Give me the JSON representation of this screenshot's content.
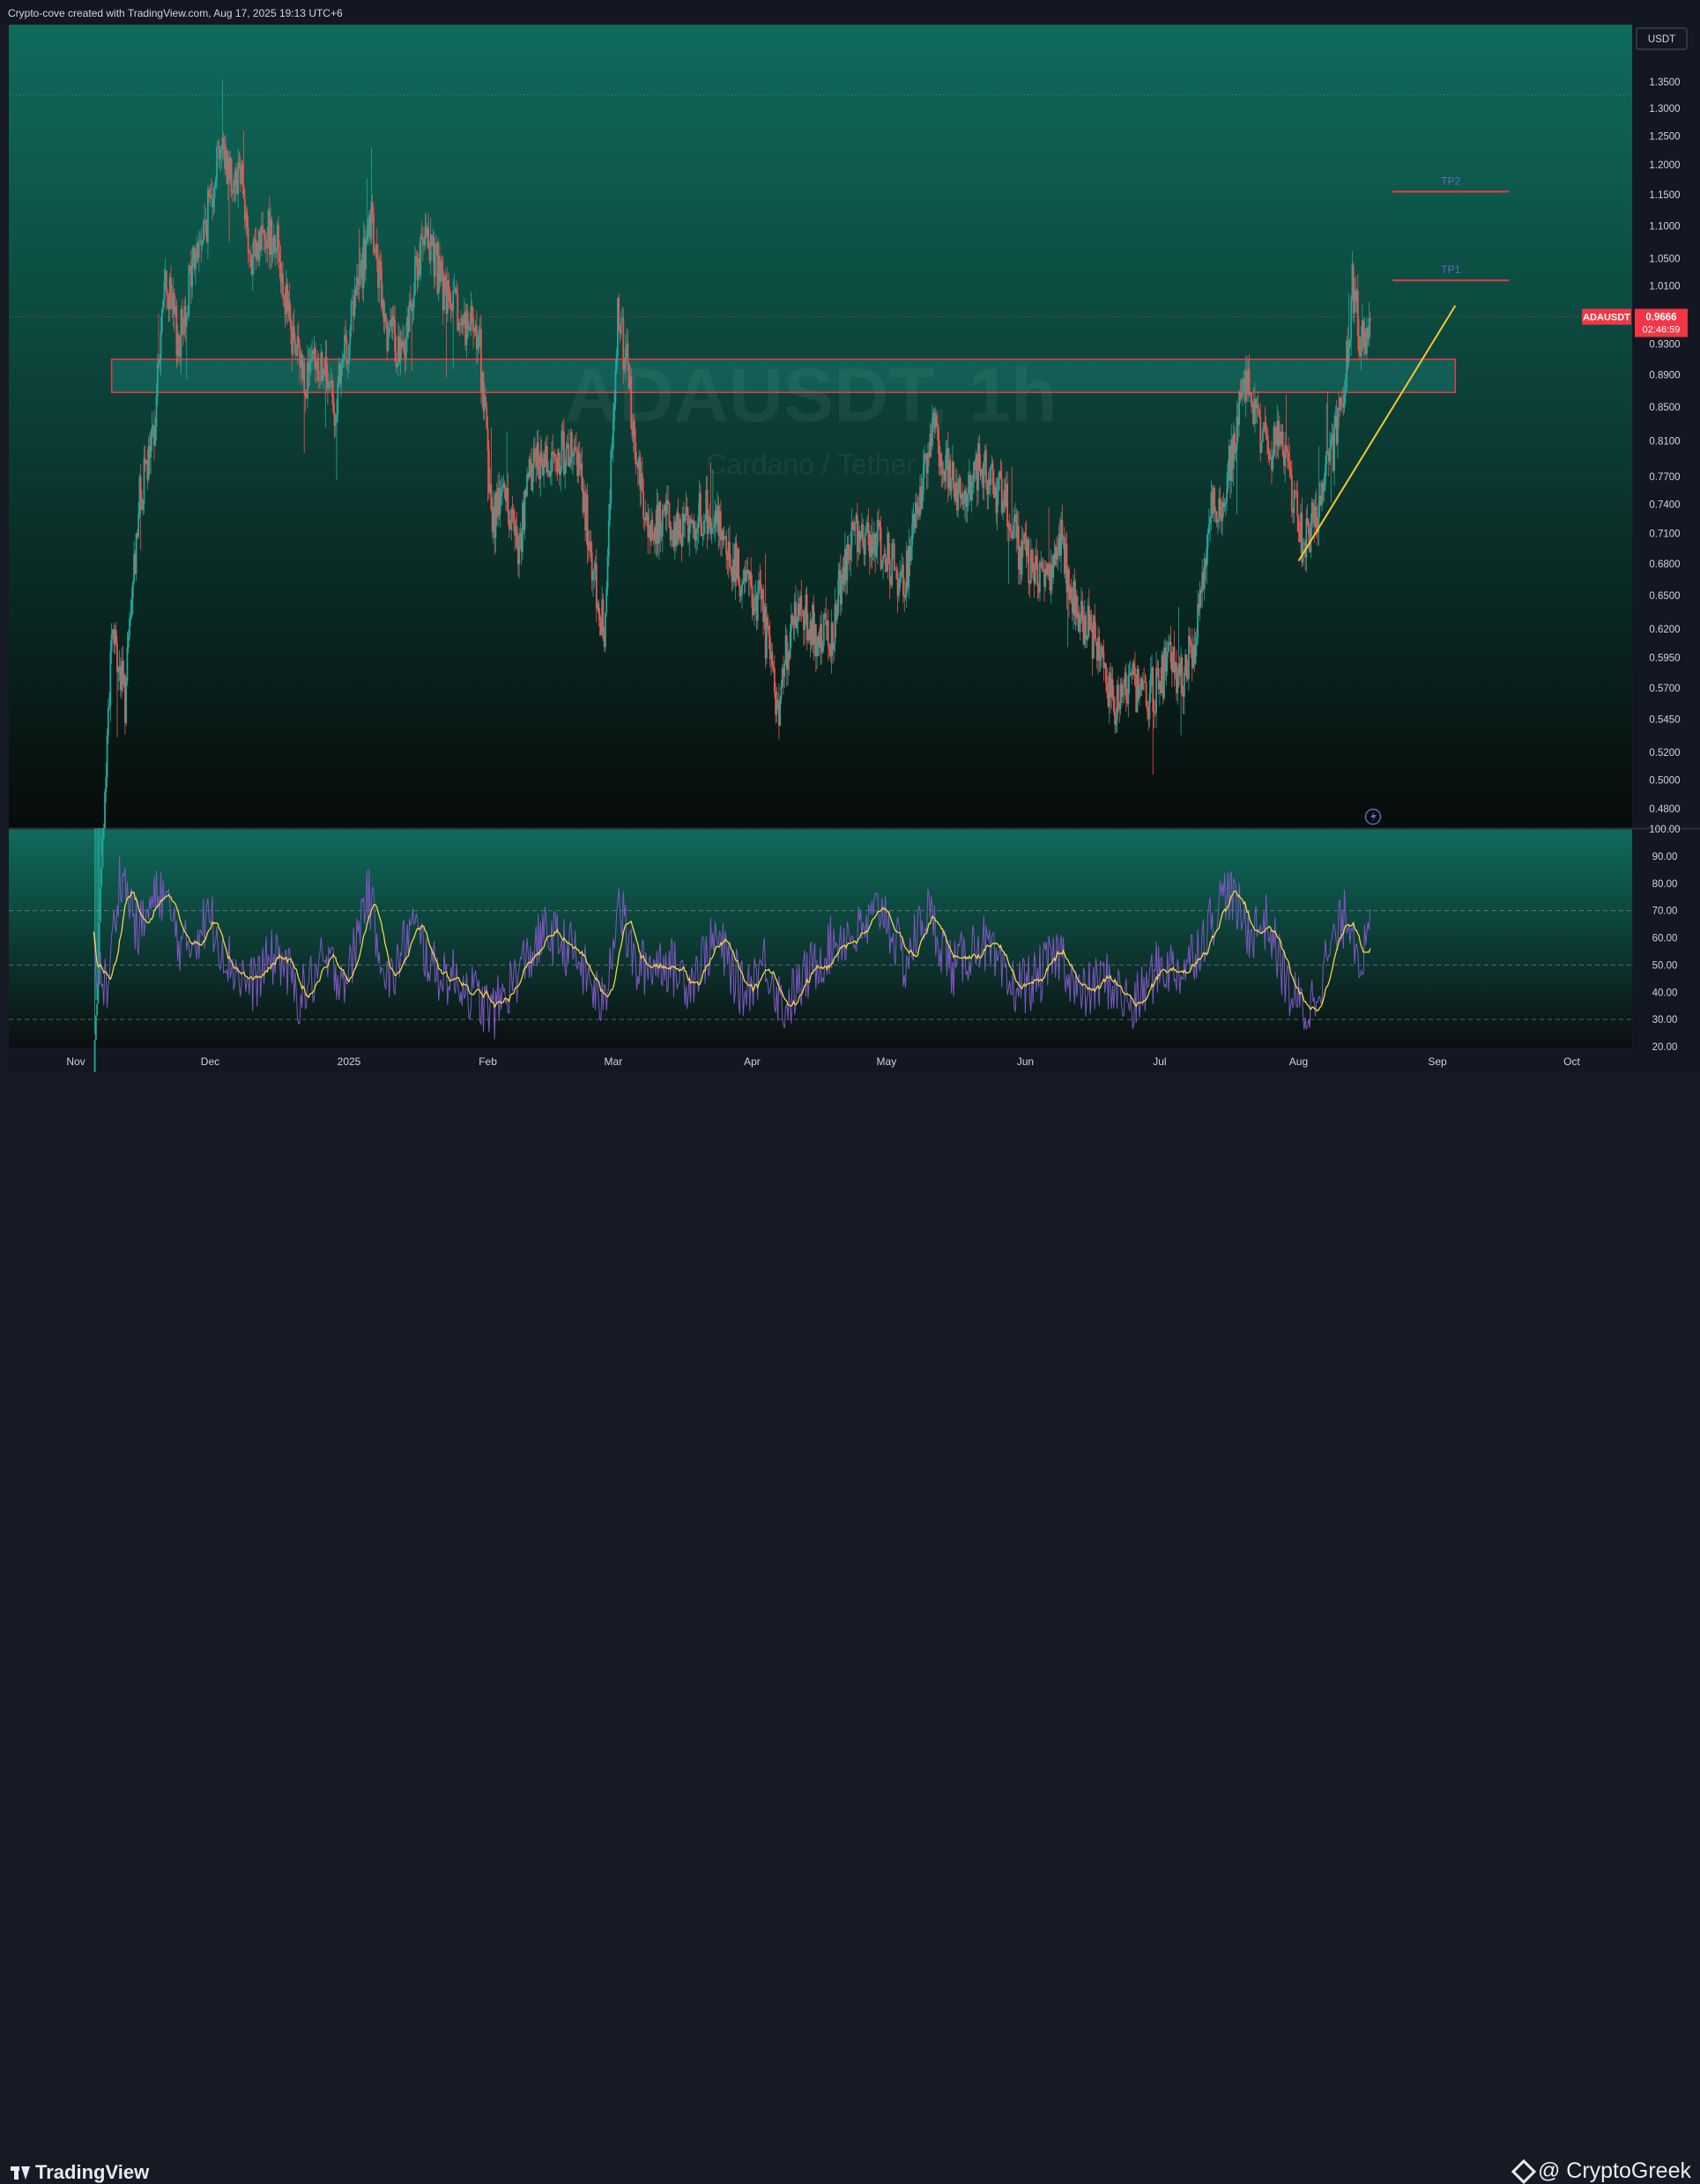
{
  "attribution": "Crypto-cove created with TradingView.com, Aug 17, 2025 19:13 UTC+6",
  "footer": {
    "logo_text": "TradingView",
    "brand_text": "@ CryptoGreek"
  },
  "colors": {
    "up": "#26a69a",
    "down": "#ef5350",
    "rsi_line": "#7e57c2",
    "rsi_ma": "#f5d34a",
    "zone_border": "#f23645",
    "trendline": "#f7c537",
    "price_tag": "#f23645"
  },
  "chart_data": {
    "type": "candlestick",
    "symbol": "ADAUSDT",
    "watermark": {
      "symbol": "ADAUSDT",
      "timeframe": "1h",
      "description": "Cardano / Tether"
    },
    "currency": "USDT",
    "last_price": "0.9666",
    "countdown": "02:46:59",
    "price_ticks": [
      "1.3500",
      "1.3000",
      "1.2500",
      "1.2000",
      "1.1500",
      "1.1000",
      "1.0500",
      "1.0100",
      "0.9300",
      "0.8900",
      "0.8500",
      "0.8100",
      "0.7700",
      "0.7400",
      "0.7100",
      "0.6800",
      "0.6500",
      "0.6200",
      "0.5950",
      "0.5700",
      "0.5450",
      "0.5200",
      "0.5000",
      "0.4800"
    ],
    "time_labels": [
      "Nov",
      "Dec",
      "2025",
      "Feb",
      "Mar",
      "Apr",
      "May",
      "Jun",
      "Jul",
      "Aug",
      "Sep",
      "Oct"
    ],
    "price_path": [
      [
        "2024-11-05",
        0.33
      ],
      [
        "2024-11-09",
        0.62
      ],
      [
        "2024-11-12",
        0.56
      ],
      [
        "2024-11-15",
        0.74
      ],
      [
        "2024-11-18",
        0.8
      ],
      [
        "2024-11-21",
        1.02
      ],
      [
        "2024-11-24",
        0.93
      ],
      [
        "2024-11-27",
        1.04
      ],
      [
        "2024-11-30",
        1.1
      ],
      [
        "2024-12-03",
        1.24
      ],
      [
        "2024-12-06",
        1.18
      ],
      [
        "2024-12-08",
        1.2
      ],
      [
        "2024-12-10",
        1.03
      ],
      [
        "2024-12-13",
        1.1
      ],
      [
        "2024-12-16",
        1.08
      ],
      [
        "2024-12-19",
        0.94
      ],
      [
        "2024-12-22",
        0.89
      ],
      [
        "2024-12-26",
        0.9
      ],
      [
        "2024-12-29",
        0.85
      ],
      [
        "2025-01-02",
        0.98
      ],
      [
        "2025-01-06",
        1.1
      ],
      [
        "2025-01-09",
        0.96
      ],
      [
        "2025-01-13",
        0.91
      ],
      [
        "2025-01-16",
        1.04
      ],
      [
        "2025-01-19",
        1.08
      ],
      [
        "2025-01-22",
        1.0
      ],
      [
        "2025-01-26",
        0.96
      ],
      [
        "2025-01-30",
        0.94
      ],
      [
        "2025-02-02",
        0.72
      ],
      [
        "2025-02-04",
        0.76
      ],
      [
        "2025-02-08",
        0.7
      ],
      [
        "2025-02-11",
        0.79
      ],
      [
        "2025-02-15",
        0.79
      ],
      [
        "2025-02-19",
        0.8
      ],
      [
        "2025-02-22",
        0.76
      ],
      [
        "2025-02-25",
        0.66
      ],
      [
        "2025-02-27",
        0.62
      ],
      [
        "2025-03-02",
        0.98
      ],
      [
        "2025-03-04",
        0.9
      ],
      [
        "2025-03-06",
        0.8
      ],
      [
        "2025-03-09",
        0.71
      ],
      [
        "2025-03-12",
        0.73
      ],
      [
        "2025-03-16",
        0.71
      ],
      [
        "2025-03-20",
        0.73
      ],
      [
        "2025-03-24",
        0.73
      ],
      [
        "2025-03-28",
        0.68
      ],
      [
        "2025-03-31",
        0.66
      ],
      [
        "2025-04-03",
        0.64
      ],
      [
        "2025-04-07",
        0.55
      ],
      [
        "2025-04-09",
        0.61
      ],
      [
        "2025-04-12",
        0.64
      ],
      [
        "2025-04-16",
        0.61
      ],
      [
        "2025-04-19",
        0.62
      ],
      [
        "2025-04-23",
        0.71
      ],
      [
        "2025-04-27",
        0.71
      ],
      [
        "2025-05-01",
        0.69
      ],
      [
        "2025-05-05",
        0.66
      ],
      [
        "2025-05-08",
        0.74
      ],
      [
        "2025-05-11",
        0.83
      ],
      [
        "2025-05-14",
        0.79
      ],
      [
        "2025-05-18",
        0.74
      ],
      [
        "2025-05-22",
        0.79
      ],
      [
        "2025-05-25",
        0.76
      ],
      [
        "2025-05-28",
        0.74
      ],
      [
        "2025-05-31",
        0.69
      ],
      [
        "2025-06-03",
        0.68
      ],
      [
        "2025-06-06",
        0.66
      ],
      [
        "2025-06-09",
        0.7
      ],
      [
        "2025-06-12",
        0.64
      ],
      [
        "2025-06-15",
        0.62
      ],
      [
        "2025-06-18",
        0.6
      ],
      [
        "2025-06-21",
        0.55
      ],
      [
        "2025-06-24",
        0.58
      ],
      [
        "2025-06-27",
        0.56
      ],
      [
        "2025-06-30",
        0.57
      ],
      [
        "2025-07-03",
        0.59
      ],
      [
        "2025-07-06",
        0.58
      ],
      [
        "2025-07-09",
        0.61
      ],
      [
        "2025-07-12",
        0.73
      ],
      [
        "2025-07-15",
        0.74
      ],
      [
        "2025-07-18",
        0.82
      ],
      [
        "2025-07-20",
        0.88
      ],
      [
        "2025-07-23",
        0.83
      ],
      [
        "2025-07-25",
        0.8
      ],
      [
        "2025-07-28",
        0.81
      ],
      [
        "2025-07-31",
        0.75
      ],
      [
        "2025-08-02",
        0.7
      ],
      [
        "2025-08-05",
        0.73
      ],
      [
        "2025-08-08",
        0.79
      ],
      [
        "2025-08-11",
        0.85
      ],
      [
        "2025-08-13",
        1.01
      ],
      [
        "2025-08-15",
        0.93
      ],
      [
        "2025-08-17",
        0.97
      ]
    ],
    "annotations": {
      "zone": {
        "from": "2024-11-09",
        "to": "2025-09-05",
        "top": 0.91,
        "bottom": 0.868
      },
      "trendline": {
        "from": [
          "2025-08-01",
          0.683
        ],
        "to": [
          "2025-09-05",
          0.982
        ]
      },
      "targets": [
        {
          "label": "TP1",
          "price": 1.018,
          "from": "2025-08-22",
          "to": "2025-09-17"
        },
        {
          "label": "TP2",
          "price": 1.155,
          "from": "2025-08-22",
          "to": "2025-09-17"
        }
      ]
    },
    "rsi": {
      "ticks": [
        "100.00",
        "90.00",
        "80.00",
        "70.00",
        "60.00",
        "50.00",
        "40.00",
        "30.00",
        "20.00"
      ],
      "levels": [
        70,
        50,
        30
      ],
      "path": [
        [
          "2024-11-05",
          55
        ],
        [
          "2024-11-08",
          40
        ],
        [
          "2024-11-11",
          85
        ],
        [
          "2024-11-15",
          62
        ],
        [
          "2024-11-20",
          78
        ],
        [
          "2024-11-25",
          55
        ],
        [
          "2024-12-01",
          68
        ],
        [
          "2024-12-05",
          52
        ],
        [
          "2024-12-10",
          42
        ],
        [
          "2024-12-16",
          55
        ],
        [
          "2024-12-21",
          38
        ],
        [
          "2024-12-26",
          50
        ],
        [
          "2025-01-01",
          46
        ],
        [
          "2025-01-05",
          78
        ],
        [
          "2025-01-10",
          42
        ],
        [
          "2025-01-15",
          65
        ],
        [
          "2025-01-20",
          48
        ],
        [
          "2025-01-26",
          44
        ],
        [
          "2025-02-02",
          32
        ],
        [
          "2025-02-08",
          48
        ],
        [
          "2025-02-14",
          62
        ],
        [
          "2025-02-20",
          55
        ],
        [
          "2025-02-27",
          34
        ],
        [
          "2025-03-02",
          75
        ],
        [
          "2025-03-06",
          48
        ],
        [
          "2025-03-12",
          52
        ],
        [
          "2025-03-18",
          44
        ],
        [
          "2025-03-24",
          60
        ],
        [
          "2025-03-30",
          40
        ],
        [
          "2025-04-04",
          52
        ],
        [
          "2025-04-08",
          34
        ],
        [
          "2025-04-14",
          48
        ],
        [
          "2025-04-20",
          60
        ],
        [
          "2025-04-26",
          62
        ],
        [
          "2025-04-30",
          72
        ],
        [
          "2025-05-05",
          50
        ],
        [
          "2025-05-10",
          70
        ],
        [
          "2025-05-16",
          48
        ],
        [
          "2025-05-22",
          60
        ],
        [
          "2025-05-28",
          42
        ],
        [
          "2025-06-03",
          44
        ],
        [
          "2025-06-09",
          55
        ],
        [
          "2025-06-13",
          38
        ],
        [
          "2025-06-19",
          45
        ],
        [
          "2025-06-25",
          34
        ],
        [
          "2025-07-01",
          50
        ],
        [
          "2025-07-06",
          48
        ],
        [
          "2025-07-10",
          58
        ],
        [
          "2025-07-16",
          78
        ],
        [
          "2025-07-21",
          62
        ],
        [
          "2025-07-25",
          66
        ],
        [
          "2025-07-30",
          40
        ],
        [
          "2025-08-03",
          32
        ],
        [
          "2025-08-08",
          55
        ],
        [
          "2025-08-12",
          70
        ],
        [
          "2025-08-15",
          52
        ],
        [
          "2025-08-17",
          60
        ]
      ]
    }
  }
}
